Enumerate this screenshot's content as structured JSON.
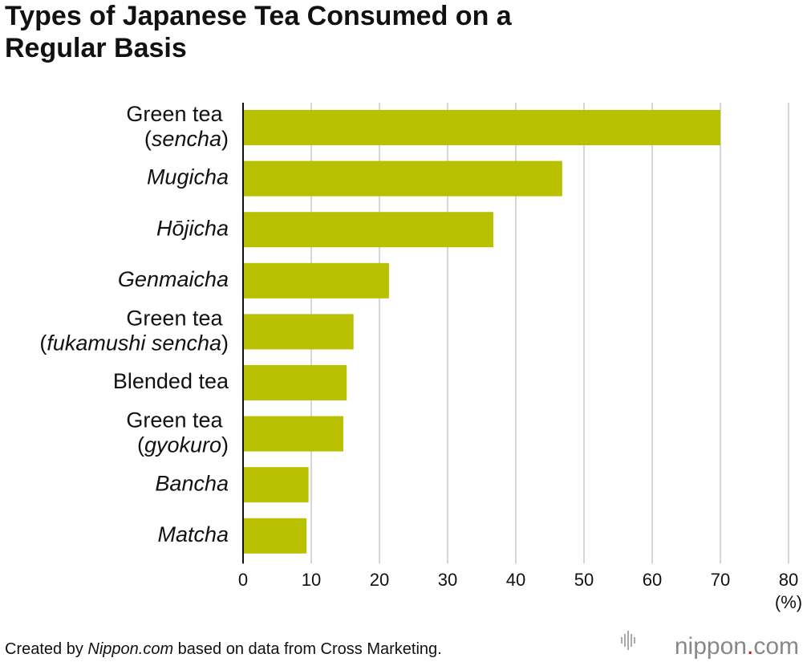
{
  "chart_data": {
    "type": "barh",
    "title": "Types of Japanese Tea Consumed on a Regular Basis",
    "categories": [
      "Green tea (sencha)",
      "Mugicha",
      "Hōjicha",
      "Genmaicha",
      "Green tea (fukamushi sencha)",
      "Blended tea",
      "Green tea (gyokuro)",
      "Bancha",
      "Matcha"
    ],
    "category_styles": [
      "paren-italic",
      "italic",
      "italic",
      "italic",
      "paren-italic",
      "normal",
      "paren-italic",
      "italic",
      "italic"
    ],
    "values": [
      70.0,
      46.8,
      36.7,
      21.4,
      16.2,
      15.2,
      14.7,
      9.6,
      9.3
    ],
    "color": "#b9c000",
    "xlim": [
      0,
      80
    ],
    "xticks": [
      0,
      10,
      20,
      30,
      40,
      50,
      60,
      70,
      80
    ],
    "grid": true,
    "x_unit": "(%)",
    "source": [
      {
        "text": "Created by "
      },
      {
        "text": "Nippon.com",
        "italic": true
      },
      {
        "text": " based on data from Cross Marketing."
      }
    ],
    "logo": "nippon.com"
  }
}
